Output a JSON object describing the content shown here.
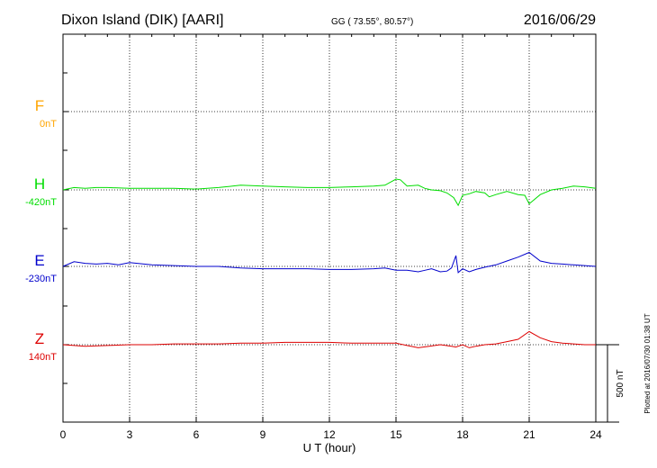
{
  "header": {
    "station": "Dixon Island (DIK)  [AARI]",
    "coords": "GG ( 73.55°,  80.57°)",
    "date": "2016/06/29"
  },
  "plotted_note": "Plotted at 2016/07/30 01:38 UT",
  "colors": {
    "F": "#ffa500",
    "H": "#00dd00",
    "E": "#0000cc",
    "Z": "#dd0000",
    "frame": "#000000"
  },
  "chart_data": {
    "type": "line",
    "title": "Dixon Island (DIK)  [AARI]",
    "xlabel": "U T (hour)",
    "xlim": [
      0,
      24
    ],
    "x_ticks": [
      "0",
      "3",
      "6",
      "9",
      "12",
      "15",
      "18",
      "21",
      "24"
    ],
    "grid": true,
    "scale_bar": {
      "label": "500 nT",
      "value": 500
    },
    "series": [
      {
        "name": "F",
        "baseline_label": "0nT",
        "baseline": 0,
        "x": [],
        "y": []
      },
      {
        "name": "H",
        "baseline_label": "-420nT",
        "baseline": -420,
        "x": [
          0,
          0.5,
          1,
          1.5,
          2,
          3,
          4,
          5,
          6,
          6.5,
          7,
          8,
          9,
          10,
          11,
          12,
          13,
          14,
          14.5,
          15,
          15.2,
          15.5,
          16,
          16.3,
          16.6,
          17,
          17.3,
          17.6,
          17.8,
          18,
          18.3,
          18.6,
          19,
          19.2,
          19.5,
          20,
          20.5,
          20.8,
          21,
          21.5,
          22,
          22.5,
          23,
          23.5,
          24
        ],
        "y": [
          -420,
          -405,
          -410,
          -405,
          -405,
          -410,
          -410,
          -410,
          -415,
          -410,
          -405,
          -390,
          -395,
          -400,
          -405,
          -405,
          -400,
          -395,
          -390,
          -350,
          -355,
          -395,
          -390,
          -410,
          -420,
          -425,
          -440,
          -470,
          -520,
          -455,
          -445,
          -430,
          -440,
          -465,
          -450,
          -430,
          -450,
          -455,
          -510,
          -450,
          -420,
          -410,
          -395,
          -400,
          -410
        ]
      },
      {
        "name": "E",
        "baseline_label": "-230nT",
        "baseline": -230,
        "x": [
          0,
          0.5,
          1,
          1.5,
          2,
          2.5,
          3,
          4,
          5,
          6,
          7,
          8,
          9,
          10,
          11,
          12,
          13,
          14,
          14.5,
          15,
          15.5,
          16,
          16.3,
          16.6,
          17,
          17.3,
          17.5,
          17.7,
          17.8,
          18,
          18.3,
          18.6,
          19,
          19.5,
          20,
          20.5,
          21,
          21.5,
          22,
          22.5,
          23,
          23.5,
          24
        ],
        "y": [
          -230,
          -200,
          -210,
          -215,
          -210,
          -220,
          -205,
          -220,
          -225,
          -230,
          -230,
          -240,
          -245,
          -245,
          -245,
          -250,
          -250,
          -245,
          -240,
          -255,
          -255,
          -265,
          -255,
          -245,
          -265,
          -260,
          -240,
          -160,
          -270,
          -245,
          -265,
          -250,
          -235,
          -220,
          -195,
          -170,
          -140,
          -195,
          -210,
          -215,
          -220,
          -225,
          -230
        ]
      },
      {
        "name": "Z",
        "baseline_label": "140nT",
        "baseline": 140,
        "x": [
          0,
          1,
          2,
          3,
          4,
          5,
          6,
          7,
          8,
          9,
          10,
          11,
          12,
          13,
          14,
          15,
          15.5,
          16,
          16.5,
          17,
          17.5,
          17.7,
          18,
          18.3,
          18.6,
          19,
          19.5,
          20,
          20.5,
          21,
          21.5,
          22,
          22.5,
          23,
          23.5,
          24
        ],
        "y": [
          140,
          130,
          135,
          140,
          140,
          145,
          145,
          145,
          150,
          150,
          155,
          155,
          155,
          150,
          150,
          150,
          135,
          120,
          130,
          140,
          130,
          125,
          140,
          120,
          130,
          140,
          145,
          160,
          175,
          225,
          185,
          160,
          150,
          145,
          140,
          140
        ]
      }
    ]
  }
}
